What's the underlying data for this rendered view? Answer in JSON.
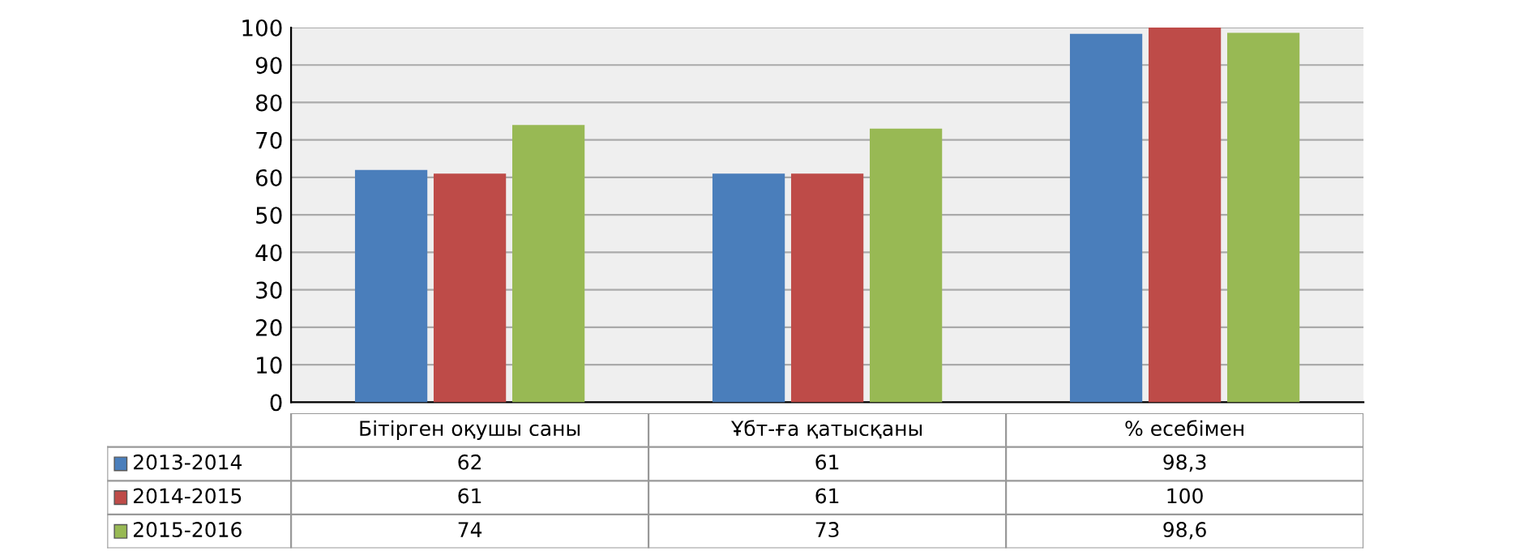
{
  "chart_data": {
    "type": "bar",
    "categories": [
      "Бітірген оқушы саны",
      "Ұбт-ға қатысқаны",
      "% есебімен"
    ],
    "series": [
      {
        "name": "2013-2014",
        "color": "#4a7ebb",
        "values": [
          62,
          61,
          98.3
        ],
        "value_labels": [
          "62",
          "61",
          "98,3"
        ]
      },
      {
        "name": "2014-2015",
        "color": "#be4b48",
        "values": [
          61,
          61,
          100
        ],
        "value_labels": [
          "61",
          "61",
          "100"
        ]
      },
      {
        "name": "2015-2016",
        "color": "#98b954",
        "values": [
          74,
          73,
          98.6
        ],
        "value_labels": [
          "74",
          "73",
          "98,6"
        ]
      }
    ],
    "ylim": [
      0,
      100
    ],
    "yticks": [
      0,
      10,
      20,
      30,
      40,
      50,
      60,
      70,
      80,
      90,
      100
    ],
    "grid": "y",
    "legend": "bottom left"
  }
}
